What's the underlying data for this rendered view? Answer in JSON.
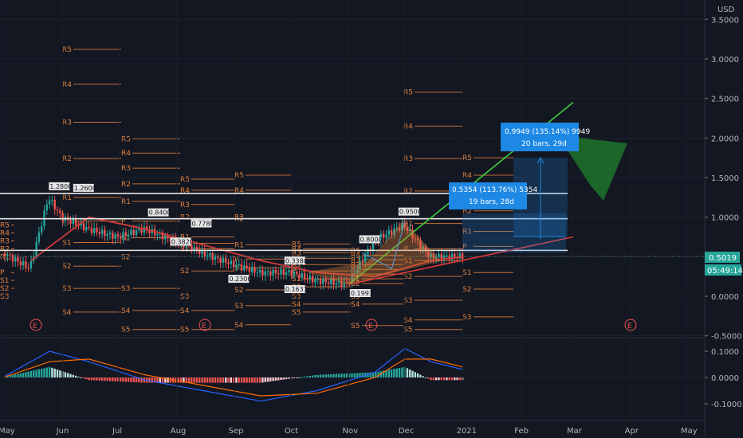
{
  "price_axis": {
    "currency": "USD",
    "ticks": [
      "3.5000",
      "3.0000",
      "2.5000",
      "2.0000",
      "1.5000",
      "1.0000",
      "0.5000",
      "0.0000",
      "-0.5000"
    ],
    "last_price": "0.5019",
    "countdown": "05:49:14"
  },
  "macd_axis": {
    "ticks": [
      "0.1000",
      "0.0000",
      "-0.1000"
    ]
  },
  "time_axis": [
    "May",
    "Jun",
    "Jul",
    "Aug",
    "Sep",
    "Oct",
    "Nov",
    "Dec",
    "2021",
    "Feb",
    "Mar",
    "Apr",
    "May"
  ],
  "earnings_marker": "E",
  "measurements": [
    {
      "line1": "0.9949 (135.14%) 9949",
      "line2": "20 bars, 29d"
    },
    {
      "line1": "0.5354 (113.76%) 5354",
      "line2": "19 bars, 28d"
    }
  ],
  "price_badges": [
    "1.2800",
    "1.2600",
    "0.8400",
    "0.7780",
    "0.3820",
    "0.2300",
    "0.3380",
    "0.1631",
    "0.8000",
    "0.9500",
    "0.1991"
  ],
  "pivot_labels": [
    "R5",
    "R4",
    "R3",
    "R2",
    "R1",
    "P",
    "S1",
    "S2",
    "S3",
    "S4",
    "S5"
  ],
  "colors": {
    "background": "#131722",
    "up": "#26a69a",
    "down": "#ef5350",
    "pivot": "#e0803a",
    "trend_green": "#3ccf3c",
    "trend_red": "#e03a3a",
    "macd": "#2962ff",
    "signal": "#ff6d00",
    "measure": "#1e88e5"
  },
  "chart_data": {
    "type": "candlestick",
    "x_range": [
      "2020-05",
      "2021-05"
    ],
    "ylim": [
      -0.5,
      3.6
    ],
    "price_series": {
      "x": [
        "2020-05-01",
        "2020-05-15",
        "2020-05-25",
        "2020-06-01",
        "2020-06-15",
        "2020-07-01",
        "2020-07-15",
        "2020-08-01",
        "2020-08-15",
        "2020-09-01",
        "2020-09-15",
        "2020-10-01",
        "2020-10-15",
        "2020-11-01",
        "2020-11-15",
        "2020-12-01",
        "2020-12-15",
        "2021-01-01"
      ],
      "close": [
        0.55,
        0.35,
        1.25,
        1.0,
        0.85,
        0.75,
        0.85,
        0.7,
        0.55,
        0.4,
        0.3,
        0.3,
        0.2,
        0.15,
        0.7,
        0.9,
        0.5,
        0.5019
      ]
    },
    "moving_average": {
      "x": [
        "2020-05-15",
        "2020-06-15",
        "2020-07-15",
        "2020-08-15",
        "2020-09-15",
        "2020-10-15",
        "2020-11-15",
        "2020-12-15",
        "2021-01-01"
      ],
      "y": [
        0.45,
        1.0,
        0.85,
        0.65,
        0.45,
        0.3,
        0.25,
        0.45,
        0.5
      ]
    },
    "horizontal_levels": [
      1.3,
      0.98,
      0.58
    ],
    "trendline_up": {
      "x": [
        "2020-11-01",
        "2021-03-01"
      ],
      "y": [
        0.15,
        2.45
      ]
    },
    "trendline_support": {
      "x": [
        "2020-11-01",
        "2021-03-01"
      ],
      "y": [
        0.15,
        0.75
      ]
    },
    "macd": {
      "x": [
        "2020-05-01",
        "2020-05-25",
        "2020-06-15",
        "2020-07-15",
        "2020-08-15",
        "2020-09-15",
        "2020-10-15",
        "2020-11-15",
        "2020-12-01",
        "2020-12-15",
        "2021-01-01"
      ],
      "macd": [
        0.005,
        0.1,
        0.06,
        -0.01,
        -0.05,
        -0.09,
        -0.05,
        0.02,
        0.11,
        0.06,
        0.03
      ],
      "signal": [
        0.002,
        0.06,
        0.07,
        0.01,
        -0.03,
        -0.07,
        -0.06,
        0.0,
        0.07,
        0.07,
        0.04
      ],
      "ylim": [
        -0.14,
        0.14
      ]
    }
  }
}
